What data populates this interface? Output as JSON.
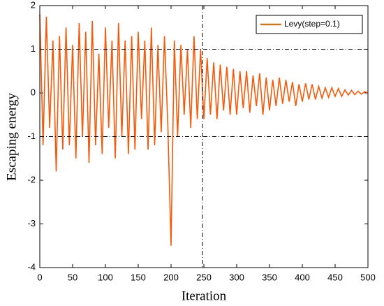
{
  "chart_data": {
    "type": "line",
    "xlabel": "Iteration",
    "ylabel": "Escaping energy",
    "x": [
      0,
      5,
      10,
      15,
      20,
      25,
      30,
      35,
      40,
      45,
      50,
      55,
      60,
      65,
      70,
      75,
      80,
      85,
      90,
      95,
      100,
      105,
      110,
      115,
      120,
      125,
      130,
      135,
      140,
      145,
      150,
      155,
      160,
      165,
      170,
      175,
      180,
      185,
      190,
      195,
      200,
      205,
      210,
      215,
      220,
      225,
      230,
      235,
      240,
      245,
      250,
      255,
      260,
      265,
      270,
      275,
      280,
      285,
      290,
      295,
      300,
      305,
      310,
      315,
      320,
      325,
      330,
      335,
      340,
      345,
      350,
      355,
      360,
      365,
      370,
      375,
      380,
      385,
      390,
      395,
      400,
      405,
      410,
      415,
      420,
      425,
      430,
      435,
      440,
      445,
      450,
      455,
      460,
      465,
      470,
      475,
      480,
      485,
      490,
      495,
      500
    ],
    "series": [
      {
        "name": "Levy(step=0.1)",
        "color": "#f55a0a",
        "values": [
          1.8,
          -1.2,
          1.75,
          -0.8,
          1.2,
          -1.8,
          1.3,
          -1.3,
          1.5,
          -1.2,
          1.1,
          -1.5,
          1.6,
          -1.0,
          1.4,
          -1.6,
          1.65,
          -1.2,
          0.9,
          -1.4,
          1.5,
          -0.8,
          1.2,
          -1.5,
          1.6,
          -1.0,
          1.2,
          -1.4,
          1.3,
          -1.3,
          1.4,
          -0.6,
          1.2,
          -1.3,
          1.5,
          -1.2,
          1.1,
          -0.9,
          1.3,
          -0.7,
          -3.5,
          1.2,
          -1.0,
          1.1,
          -0.5,
          1.0,
          -0.8,
          1.3,
          -0.6,
          1.0,
          -0.6,
          0.8,
          -0.5,
          0.7,
          -0.6,
          0.65,
          -0.4,
          0.6,
          -0.5,
          0.55,
          -0.5,
          0.5,
          -0.35,
          0.5,
          -0.45,
          0.4,
          -0.3,
          0.45,
          -0.5,
          0.35,
          -0.4,
          0.3,
          -0.3,
          0.35,
          -0.25,
          0.3,
          -0.2,
          0.25,
          -0.3,
          0.2,
          -0.2,
          0.22,
          -0.15,
          0.2,
          -0.15,
          0.15,
          -0.12,
          0.12,
          -0.1,
          0.12,
          -0.08,
          0.1,
          -0.08,
          0.07,
          -0.05,
          0.06,
          -0.04,
          0.04,
          -0.03,
          0.03,
          0.0
        ]
      }
    ],
    "legend_color": "#c8781e",
    "xlim": [
      0,
      500
    ],
    "xticks": [
      0,
      50,
      100,
      150,
      200,
      250,
      300,
      350,
      400,
      450,
      500
    ],
    "ylim": [
      -4,
      2
    ],
    "yticks": [
      -4,
      -3,
      -2,
      -1,
      0,
      1,
      2
    ],
    "hlines": [
      1,
      -1
    ],
    "vlines": [
      248
    ],
    "legend": "upper right",
    "grid": false
  }
}
